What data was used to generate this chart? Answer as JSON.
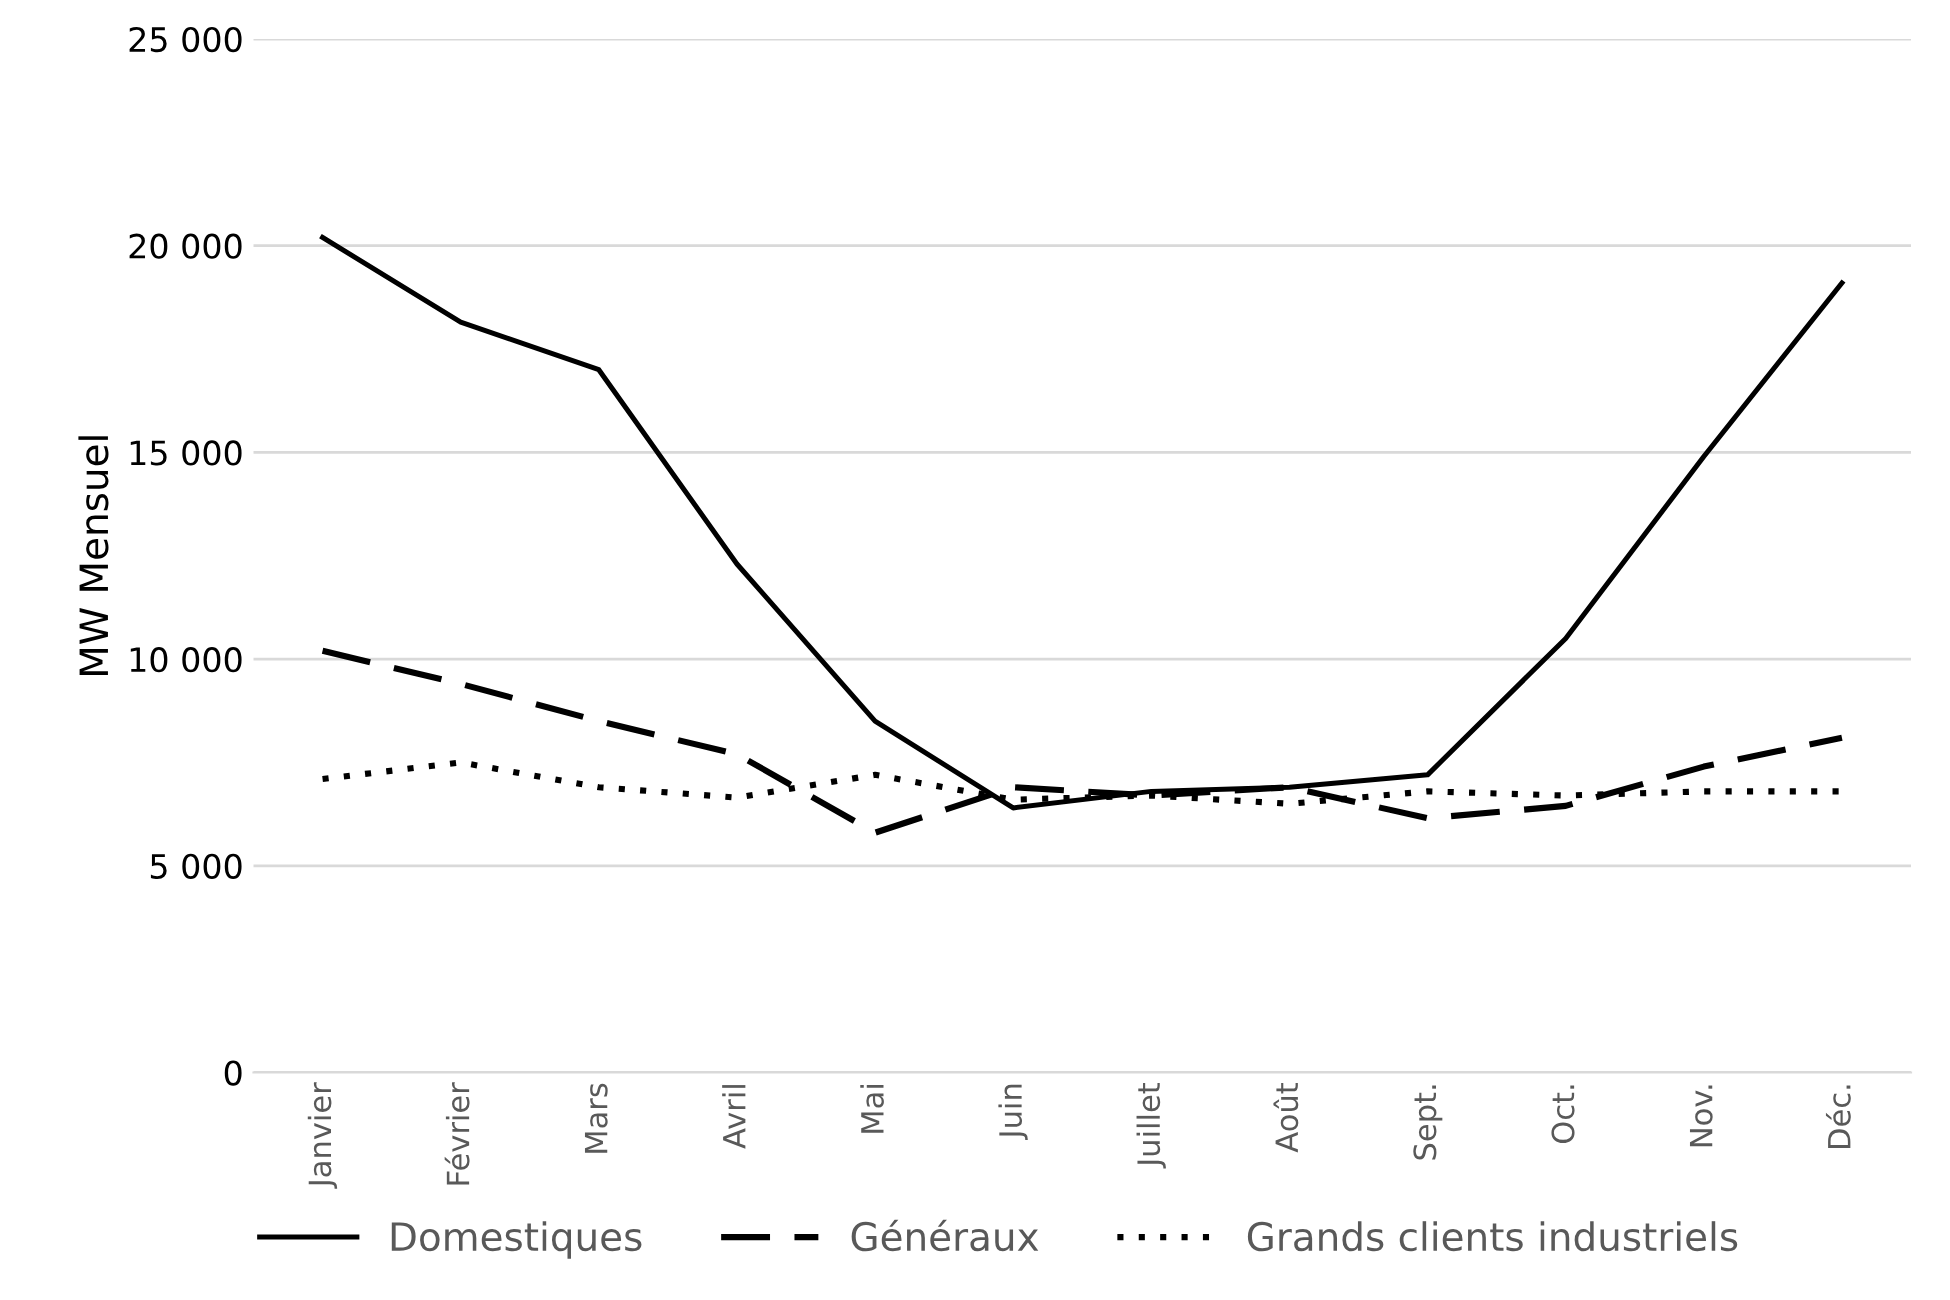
{
  "chart_data": {
    "type": "line",
    "ylabel": "MW Mensuel",
    "categories": [
      "Janvier",
      "Février",
      "Mars",
      "Avril",
      "Mai",
      "Juin",
      "Juillet",
      "Août",
      "Sept.",
      "Oct.",
      "Nov.",
      "Déc."
    ],
    "series": [
      {
        "name": "Domestiques",
        "color": "#000000",
        "line_style": "solid",
        "values": [
          20200,
          18150,
          17000,
          12300,
          8500,
          6400,
          6800,
          6900,
          7200,
          10500,
          14900,
          19100
        ]
      },
      {
        "name": "Généraux",
        "color": "#000000",
        "line_style": "dashed",
        "values": [
          10200,
          9400,
          8500,
          7700,
          5800,
          6900,
          6700,
          6900,
          6150,
          6450,
          7400,
          8100
        ]
      },
      {
        "name": "Grands clients industriels",
        "color": "#000000",
        "line_style": "dotted",
        "values": [
          7100,
          7500,
          6900,
          6650,
          7200,
          6600,
          6700,
          6500,
          6800,
          6700,
          6800,
          6800
        ]
      }
    ],
    "ylim": [
      0,
      25000
    ],
    "yticks": [
      {
        "value": 0,
        "label": "0"
      },
      {
        "value": 5000,
        "label": "5 000"
      },
      {
        "value": 10000,
        "label": "10 000"
      },
      {
        "value": 15000,
        "label": "15 000"
      },
      {
        "value": 20000,
        "label": "20 000"
      },
      {
        "value": 25000,
        "label": "25 000"
      }
    ],
    "grid": "y",
    "legend": "bottom",
    "marker": "none"
  }
}
